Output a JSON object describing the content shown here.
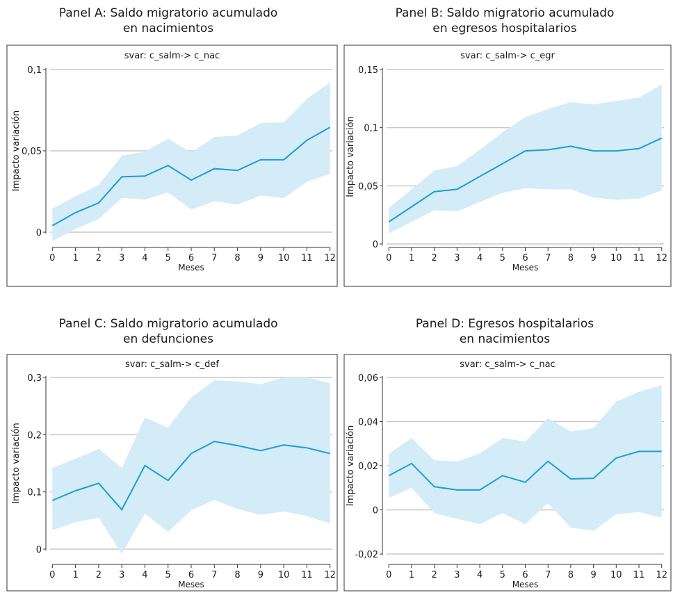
{
  "chart_data": [
    {
      "type": "line",
      "title": "Panel A: Saldo migratorio acumulado en nacimientos",
      "title_lines": [
        "Panel A: Saldo migratorio acumulado",
        "en nacimientos"
      ],
      "subtitle": "svar: c_salm-> c_nac",
      "xlabel": "Meses",
      "ylabel": "Impacto variación",
      "x": [
        0,
        1,
        2,
        3,
        4,
        5,
        6,
        7,
        8,
        9,
        10,
        11,
        12
      ],
      "values": [
        0.004,
        0.012,
        0.018,
        0.034,
        0.0345,
        0.041,
        0.032,
        0.039,
        0.038,
        0.0445,
        0.0445,
        0.0565,
        0.0645
      ],
      "lower": [
        -0.0055,
        0.002,
        0.008,
        0.021,
        0.02,
        0.0245,
        0.014,
        0.019,
        0.017,
        0.0225,
        0.021,
        0.031,
        0.036
      ],
      "upper": [
        0.0145,
        0.022,
        0.029,
        0.047,
        0.0495,
        0.0575,
        0.049,
        0.0585,
        0.0595,
        0.067,
        0.0675,
        0.082,
        0.092
      ],
      "yticks": [
        0,
        0.05,
        0.1
      ],
      "ytick_labels": [
        "0",
        "0,05",
        "0,1"
      ],
      "ylim": [
        -0.009,
        0.111
      ],
      "xlim": [
        -0.1,
        12.1
      ]
    },
    {
      "type": "line",
      "title": "Panel B: Saldo migratorio acumulado en egresos hospitalarios",
      "title_lines": [
        "Panel B: Saldo migratorio acumulado",
        "en egresos hospitalarios"
      ],
      "subtitle": "svar: c_salm-> c_egr",
      "xlabel": "Meses",
      "ylabel": "Impacto variación",
      "x": [
        0,
        1,
        2,
        3,
        4,
        5,
        6,
        7,
        8,
        9,
        10,
        11,
        12
      ],
      "values": [
        0.019,
        0.032,
        0.045,
        0.047,
        0.058,
        0.069,
        0.08,
        0.081,
        0.084,
        0.08,
        0.08,
        0.082,
        0.091
      ],
      "lower": [
        0.009,
        0.019,
        0.029,
        0.028,
        0.036,
        0.044,
        0.048,
        0.047,
        0.047,
        0.04,
        0.038,
        0.039,
        0.046
      ],
      "upper": [
        0.031,
        0.047,
        0.063,
        0.067,
        0.081,
        0.096,
        0.109,
        0.116,
        0.122,
        0.12,
        0.123,
        0.126,
        0.137
      ],
      "yticks": [
        0,
        0.05,
        0.1,
        0.15
      ],
      "ytick_labels": [
        "0",
        "0,05",
        "0,1",
        "0,15"
      ],
      "ylim": [
        -0.005,
        0.158
      ],
      "xlim": [
        -0.1,
        12.1
      ]
    },
    {
      "type": "line",
      "title": "Panel C: Saldo migratorio acumulado en defunciones",
      "title_lines": [
        "Panel C: Saldo migratorio acumulado",
        "en defunciones"
      ],
      "subtitle": "svar: c_salm-> c_def",
      "xlabel": "Meses",
      "ylabel": "Impacto variación",
      "x": [
        0,
        1,
        2,
        3,
        4,
        5,
        6,
        7,
        8,
        9,
        10,
        11,
        12
      ],
      "values": [
        0.085,
        0.102,
        0.115,
        0.069,
        0.146,
        0.12,
        0.167,
        0.188,
        0.181,
        0.172,
        0.182,
        0.177,
        0.167
      ],
      "lower": [
        0.033,
        0.047,
        0.055,
        -0.008,
        0.062,
        0.03,
        0.068,
        0.086,
        0.07,
        0.06,
        0.066,
        0.058,
        0.045
      ],
      "upper": [
        0.142,
        0.158,
        0.175,
        0.142,
        0.23,
        0.212,
        0.265,
        0.295,
        0.293,
        0.288,
        0.3,
        0.3,
        0.29
      ],
      "yticks": [
        0,
        0.1,
        0.2,
        0.3
      ],
      "ytick_labels": [
        "0",
        "0,1",
        "0,2",
        "0,3"
      ],
      "ylim": [
        -0.012,
        0.31
      ],
      "xlim": [
        -0.1,
        12.1
      ]
    },
    {
      "type": "line",
      "title": "Panel D: Egresos hospitalarios en nacimientos",
      "title_lines": [
        "Panel D: Egresos hospitalarios",
        "en nacimientos"
      ],
      "subtitle": "svar: c_salm-> c_nac",
      "xlabel": "Meses",
      "ylabel": "Impacto variación",
      "x": [
        0,
        1,
        2,
        3,
        4,
        5,
        6,
        7,
        8,
        9,
        10,
        11,
        12
      ],
      "values": [
        0.0155,
        0.021,
        0.0105,
        0.009,
        0.009,
        0.0155,
        0.0125,
        0.022,
        0.014,
        0.0143,
        0.0235,
        0.0265,
        0.0265
      ],
      "lower": [
        0.0055,
        0.01,
        -0.0015,
        -0.004,
        -0.0065,
        -0.0015,
        -0.0065,
        0.003,
        -0.008,
        -0.0095,
        -0.002,
        -0.001,
        -0.0035
      ],
      "upper": [
        0.0255,
        0.0325,
        0.0225,
        0.022,
        0.0255,
        0.0325,
        0.031,
        0.0415,
        0.0355,
        0.037,
        0.049,
        0.0535,
        0.0565
      ],
      "yticks": [
        -0.02,
        0,
        0.02,
        0.04,
        0.06
      ],
      "ytick_labels": [
        "-0,02",
        "0",
        "0,02",
        "0,04",
        "0,06"
      ],
      "ylim": [
        -0.0228,
        0.0615
      ],
      "xlim": [
        -0.1,
        12.1
      ]
    }
  ],
  "colors": {
    "line": "#1a9fd0",
    "band": "#d4ebf8",
    "grid": "#c8c8c8",
    "frame": "#333333"
  }
}
